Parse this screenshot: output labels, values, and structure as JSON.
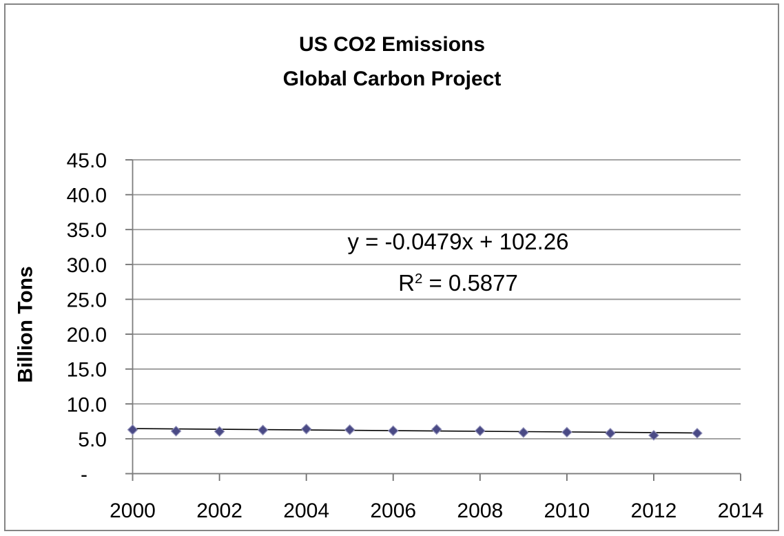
{
  "title": {
    "line1": "US CO2 Emissions",
    "line2": "Global Carbon Project"
  },
  "annotation": {
    "equation": "y = -0.0479x + 102.26",
    "r2_base": "R",
    "r2_exp": "2",
    "r2_rest": " = 0.5877"
  },
  "chart_data": {
    "type": "scatter",
    "title": "US CO2 Emissions",
    "subtitle": "Global Carbon Project",
    "xlabel": "",
    "ylabel": "Billion Tons",
    "x": [
      2000,
      2001,
      2002,
      2003,
      2004,
      2005,
      2006,
      2007,
      2008,
      2009,
      2010,
      2011,
      2012,
      2013
    ],
    "values": [
      6.3,
      6.1,
      6.05,
      6.25,
      6.4,
      6.3,
      6.15,
      6.35,
      6.15,
      5.9,
      5.95,
      5.8,
      5.5,
      5.8
    ],
    "series_name": "US CO2 Emissions",
    "xlim": [
      2000,
      2014
    ],
    "ylim": [
      0,
      45
    ],
    "x_tick_labels": [
      "2000",
      "2002",
      "2004",
      "2006",
      "2008",
      "2010",
      "2012",
      "2014"
    ],
    "y_tick_labels": [
      "45.0",
      "40.0",
      "35.0",
      "30.0",
      "25.0",
      "20.0",
      "15.0",
      "10.0",
      "5.0",
      "-"
    ],
    "y_tick_values": [
      45,
      40,
      35,
      30,
      25,
      20,
      15,
      10,
      5,
      0
    ],
    "grid": true,
    "legend": false,
    "trendline": {
      "slope": -0.0479,
      "intercept": 102.26,
      "r_squared": 0.5877,
      "equation_text": "y = -0.0479x + 102.26",
      "r2_text": "R² = 0.5877"
    },
    "marker": {
      "shape": "diamond",
      "fill": "#4a4a85",
      "stroke": "#9090b8"
    },
    "colors": {
      "gridline": "#969696",
      "axis": "#7d7d7d",
      "tick": "#6e6e6e",
      "trendline": "#000000",
      "text": "#000000",
      "frame_border": "#848484"
    }
  }
}
